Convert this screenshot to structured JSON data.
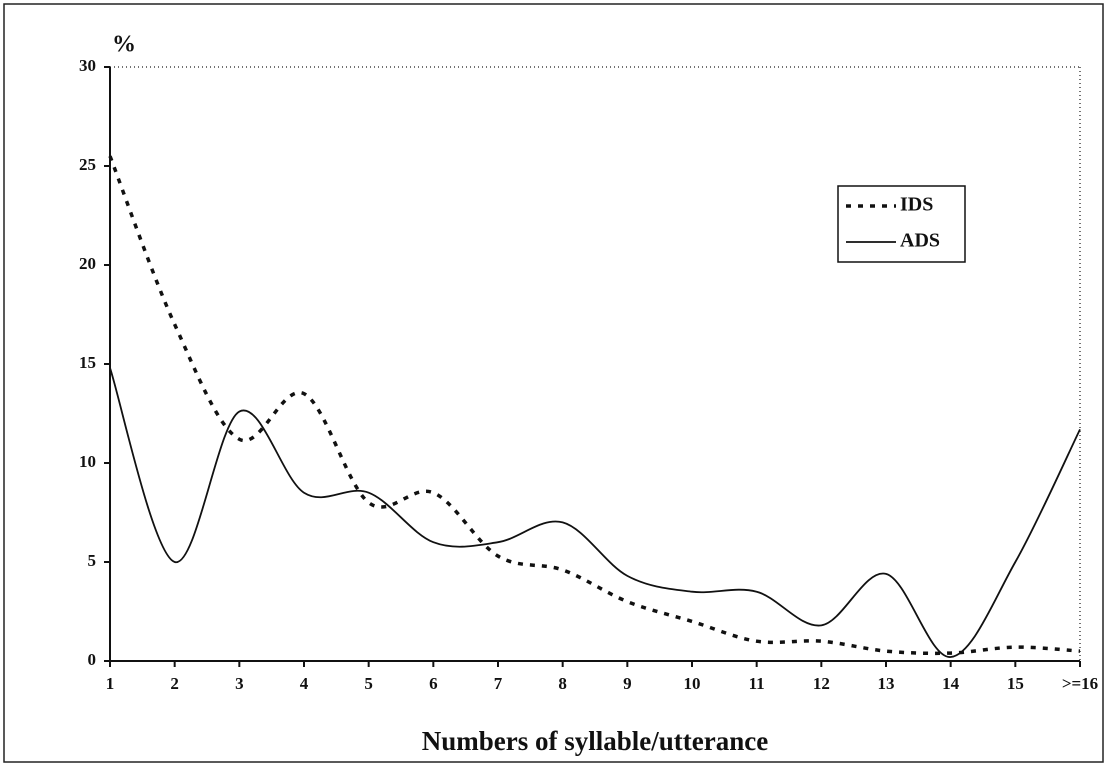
{
  "chart_data": {
    "type": "line",
    "y_label": "%",
    "x_label": "Numbers of syllable/utterance",
    "categories": [
      "1",
      "2",
      "3",
      "4",
      "5",
      "6",
      "7",
      "8",
      "9",
      "10",
      "11",
      "12",
      "13",
      "14",
      "15",
      ">=16"
    ],
    "series": [
      {
        "name": "IDS",
        "color": "#111111",
        "style": "dotted",
        "values": [
          25.5,
          17,
          11.2,
          13.5,
          8,
          8.5,
          5.3,
          4.6,
          3,
          2,
          1,
          1,
          0.5,
          0.4,
          0.7,
          0.5
        ]
      },
      {
        "name": "ADS",
        "color": "#111111",
        "style": "solid",
        "values": [
          14.8,
          5,
          12.6,
          8.5,
          8.5,
          6,
          6,
          7,
          4.3,
          3.5,
          3.5,
          1.8,
          4.4,
          0.2,
          5,
          11.7
        ]
      }
    ],
    "ylim": [
      0,
      30
    ],
    "yticks": [
      0,
      5,
      10,
      15,
      20,
      25,
      30
    ],
    "legend": "upper right"
  }
}
